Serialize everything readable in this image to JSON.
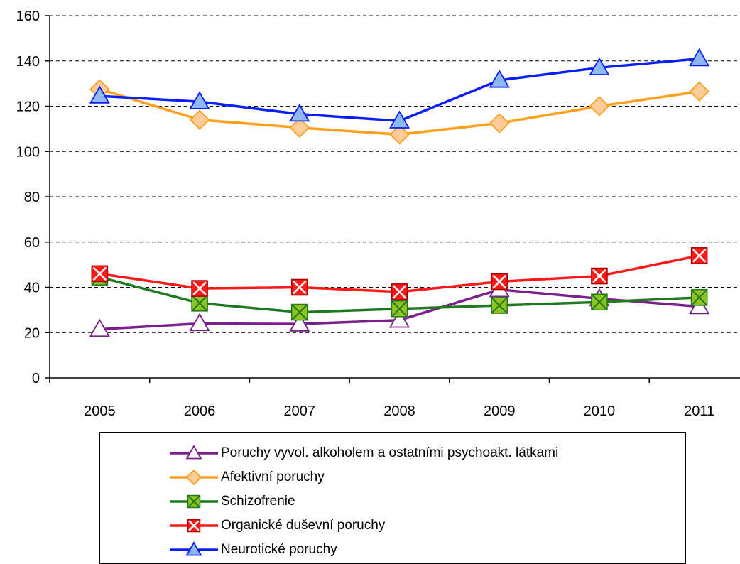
{
  "chart_data": {
    "type": "line",
    "x": [
      "2005",
      "2006",
      "2007",
      "2008",
      "2009",
      "2010",
      "2011"
    ],
    "ylim": [
      0,
      160
    ],
    "yticks": [
      0,
      20,
      40,
      60,
      80,
      100,
      120,
      140,
      160
    ],
    "grid": "horizontal dashed",
    "legend_position": "bottom",
    "series": [
      {
        "name": "Poruchy vyvol. alkoholem a ostatními psychoakt. látkami",
        "color": "#7a1f8c",
        "marker": "triangle-open",
        "values": [
          21.5,
          24,
          23.8,
          25.5,
          39,
          35,
          31.5
        ]
      },
      {
        "name": "Afektivní poruchy",
        "color": "#ff9f1c",
        "marker": "diamond",
        "values": [
          127.5,
          114,
          110.5,
          107.5,
          112.5,
          120,
          126.5
        ]
      },
      {
        "name": "Schizofrenie",
        "color": "#1f7a1f",
        "marker": "square-x",
        "values": [
          44.5,
          33,
          29,
          30.5,
          32,
          33.5,
          35.5
        ]
      },
      {
        "name": "Organické duševní poruchy",
        "color": "#ff1a1a",
        "marker": "square-x-red",
        "values": [
          46,
          39.5,
          40,
          38,
          42.5,
          45,
          54
        ]
      },
      {
        "name": "Neurotické poruchy",
        "color": "#0a1fff",
        "marker": "triangle-filled",
        "values": [
          124.5,
          122,
          116.5,
          113.5,
          131.5,
          137,
          141
        ]
      }
    ]
  }
}
